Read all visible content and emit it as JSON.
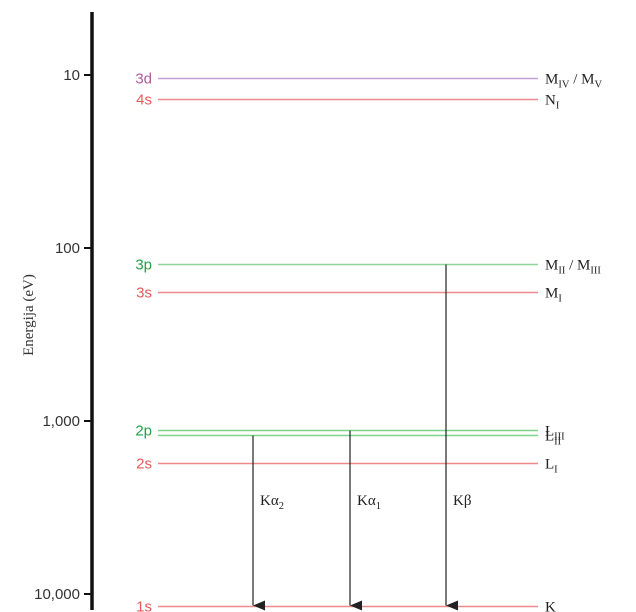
{
  "axis": {
    "title": "Energija  (eV)",
    "ticks": [
      {
        "value": 10,
        "label": "10"
      },
      {
        "value": 100,
        "label": "100"
      },
      {
        "value": 1000,
        "label": "1,000"
      },
      {
        "value": 10000,
        "label": "10,000"
      }
    ]
  },
  "levels": [
    {
      "id": "4s",
      "orbital": "4s",
      "energy": 13.8,
      "color": "#e8585a",
      "shell": "N",
      "sub": "I",
      "sep": "",
      "shell2": "",
      "sub2": ""
    },
    {
      "id": "3d",
      "orbital": "3d",
      "energy": 10.4,
      "color": "#b05c9a",
      "line_color": "#c7a0d2",
      "shell": "M",
      "sub": "IV",
      "sep": " / ",
      "shell2": "M",
      "sub2": "V"
    },
    {
      "id": "3p",
      "orbital": "3p",
      "energy": 123,
      "color": "#22a04b",
      "line_color": "#8fd49a",
      "shell": "M",
      "sub": "II",
      "sep": " / ",
      "shell2": "M",
      "sub2": "III"
    },
    {
      "id": "3s",
      "orbital": "3s",
      "energy": 180,
      "color": "#e8585a",
      "shell": "M",
      "sub": "I",
      "sep": "",
      "shell2": "",
      "sub2": ""
    },
    {
      "id": "2p3",
      "orbital": "2p",
      "energy": 1128,
      "color": "#22a04b",
      "line_color": "#7fd38d",
      "shell": "L",
      "sub": "III",
      "sep": "",
      "shell2": "",
      "sub2": ""
    },
    {
      "id": "2p1",
      "orbital": "",
      "energy": 1200,
      "color": "#22a04b",
      "line_color": "#7fd38d",
      "shell": "L",
      "sub": "II",
      "sep": "",
      "shell2": "",
      "sub2": ""
    },
    {
      "id": "2s",
      "orbital": "2s",
      "energy": 1755,
      "color": "#e8585a",
      "shell": "L",
      "sub": "I",
      "sep": "",
      "shell2": "",
      "sub2": ""
    },
    {
      "id": "1s",
      "orbital": "1s",
      "energy": 11765,
      "color": "#e8585a",
      "shell": "K",
      "sub": "",
      "sep": "",
      "shell2": "",
      "sub2": ""
    }
  ],
  "transitions": [
    {
      "id": "ka2",
      "from": "2p1",
      "to": "1s",
      "greek": "Kα",
      "sub": "2"
    },
    {
      "id": "ka1",
      "from": "2p3",
      "to": "1s",
      "greek": "Kα",
      "sub": "1"
    },
    {
      "id": "kb",
      "from": "3p",
      "to": "1s",
      "greek": "Kβ",
      "sub": ""
    }
  ],
  "colors": {
    "axis": "#111111",
    "arrow": "#222222",
    "red_line": "#f08a8a"
  }
}
